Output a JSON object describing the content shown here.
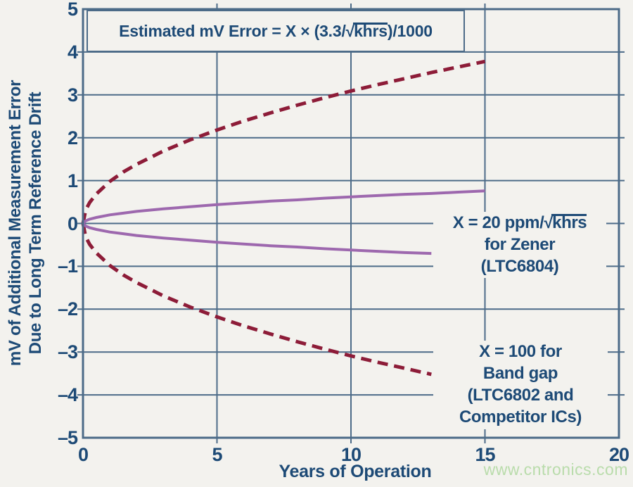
{
  "page": {
    "background": "#f3f2ee",
    "watermark": "www.cntronics.com"
  },
  "formula": {
    "prefix": "Estimated mV Error = X × (3.3/",
    "sqrt_symbol": "√",
    "radicand": "khrs",
    "suffix": ")/1000"
  },
  "axes": {
    "x_label": "Years of Operation",
    "y_label_line1": "mV of Additional Measurement Error",
    "y_label_line2": "Due to Long Term Reference Drift",
    "x_tick_labels": [
      "0",
      "5",
      "10",
      "15",
      "20"
    ],
    "y_tick_labels": [
      "5",
      "4",
      "3",
      "2",
      "1",
      "0",
      "–1",
      "–2",
      "–3",
      "–4",
      "–5"
    ]
  },
  "annotations": {
    "zener": {
      "line1_prefix": "X = 20 ppm/",
      "line1_sqrt": "√",
      "line1_radicand": "khrs",
      "line2": "for Zener",
      "line3": "(LTC6804)"
    },
    "bandgap": {
      "line1": "X = 100 for",
      "line2": "Band gap",
      "line3": "(LTC6802 and",
      "line4": "Competitor ICs)"
    }
  },
  "colors": {
    "grid": "#4c6b88",
    "text": "#1d4a76",
    "bandgap_curve": "#8d1c38",
    "zener_curve": "#9d68ae",
    "watermark": "#b9dcab"
  },
  "chart_data": {
    "type": "line",
    "title": "Estimated mV Error = X × (3.3/√khrs)/1000",
    "xlabel": "Years of Operation",
    "ylabel": "mV of Additional Measurement Error Due to Long Term Reference Drift",
    "xlim": [
      0,
      20
    ],
    "ylim": [
      -5,
      5
    ],
    "x_ticks": [
      0,
      5,
      10,
      15,
      20
    ],
    "y_ticks": [
      5,
      4,
      3,
      2,
      1,
      0,
      -1,
      -2,
      -3,
      -4,
      -5
    ],
    "grid": true,
    "legend_position": "in-plot right annotations",
    "series": [
      {
        "name": "X = 100 Band gap (LTC6802 and Competitor ICs), positive drift",
        "style": "dashed",
        "color": "#8d1c38",
        "x": [
          0,
          0.1,
          0.25,
          0.5,
          1,
          1.5,
          2,
          3,
          4,
          5,
          6,
          7,
          8,
          9,
          10,
          11,
          12,
          13,
          14,
          15
        ],
        "y": [
          0,
          0.31,
          0.49,
          0.69,
          0.98,
          1.2,
          1.38,
          1.69,
          1.95,
          2.18,
          2.39,
          2.58,
          2.76,
          2.93,
          3.09,
          3.24,
          3.38,
          3.52,
          3.65,
          3.78
        ]
      },
      {
        "name": "X = 100 Band gap (LTC6802 and Competitor ICs), negative drift",
        "style": "dashed",
        "color": "#8d1c38",
        "x": [
          0,
          0.1,
          0.25,
          0.5,
          1,
          1.5,
          2,
          3,
          4,
          5,
          6,
          7,
          8,
          9,
          10,
          11,
          12,
          13
        ],
        "y": [
          0,
          -0.31,
          -0.49,
          -0.69,
          -0.98,
          -1.2,
          -1.38,
          -1.69,
          -1.95,
          -2.18,
          -2.39,
          -2.58,
          -2.76,
          -2.93,
          -3.09,
          -3.24,
          -3.38,
          -3.52
        ]
      },
      {
        "name": "X = 20 ppm/√khrs Zener (LTC6804), positive drift",
        "style": "solid",
        "color": "#9d68ae",
        "x": [
          0,
          0.1,
          0.25,
          0.5,
          1,
          1.5,
          2,
          3,
          4,
          5,
          6,
          7,
          8,
          9,
          10,
          11,
          12,
          13,
          14,
          15
        ],
        "y": [
          0,
          0.06,
          0.1,
          0.14,
          0.2,
          0.24,
          0.28,
          0.34,
          0.39,
          0.44,
          0.48,
          0.52,
          0.55,
          0.59,
          0.62,
          0.65,
          0.68,
          0.7,
          0.73,
          0.76
        ]
      },
      {
        "name": "X = 20 ppm/√khrs Zener (LTC6804), negative drift",
        "style": "solid",
        "color": "#9d68ae",
        "x": [
          0,
          0.1,
          0.25,
          0.5,
          1,
          1.5,
          2,
          3,
          4,
          5,
          6,
          7,
          8,
          9,
          10,
          11,
          12,
          13
        ],
        "y": [
          0,
          -0.06,
          -0.1,
          -0.14,
          -0.2,
          -0.24,
          -0.28,
          -0.34,
          -0.39,
          -0.44,
          -0.48,
          -0.52,
          -0.55,
          -0.59,
          -0.62,
          -0.65,
          -0.68,
          -0.7
        ]
      }
    ]
  }
}
